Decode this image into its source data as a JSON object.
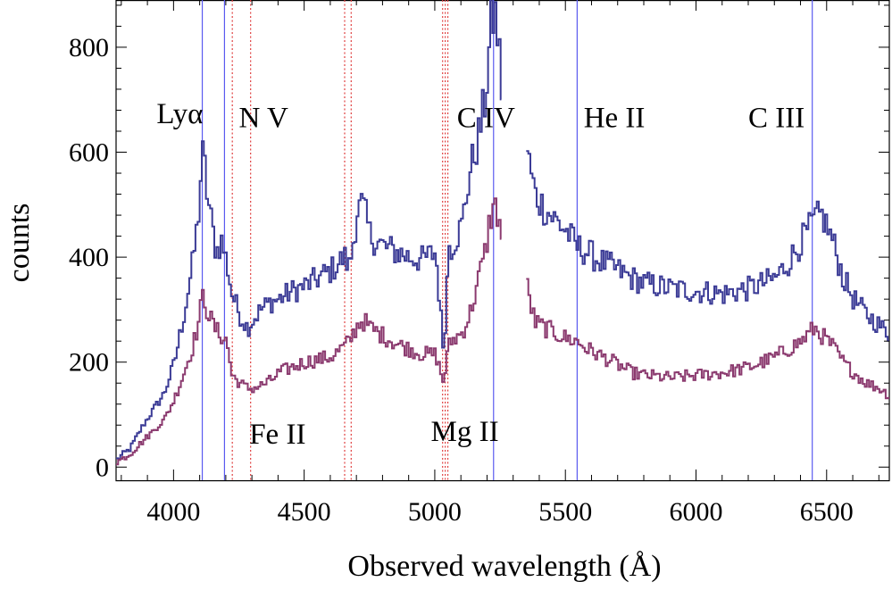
{
  "chart_data": {
    "type": "line",
    "title": "",
    "xlabel": "Observed   wavelength   (Å)",
    "ylabel": "counts",
    "xlim": [
      3780,
      6740
    ],
    "ylim": [
      -25,
      890
    ],
    "xticks": [
      4000,
      4500,
      5000,
      5500,
      6000,
      6500
    ],
    "yticks": [
      0,
      200,
      400,
      600,
      800
    ],
    "grid": false,
    "legend": "none",
    "line_labels": [
      {
        "text": "Lyα",
        "x": 3935,
        "y": 655
      },
      {
        "text": "N  V",
        "x": 4250,
        "y": 648
      },
      {
        "text": "C IV",
        "x": 5085,
        "y": 648
      },
      {
        "text": "He  II",
        "x": 5570,
        "y": 648
      },
      {
        "text": "C III",
        "x": 6200,
        "y": 648
      },
      {
        "text": "Fe II",
        "x": 4290,
        "y": 45
      },
      {
        "text": "Mg  II",
        "x": 4985,
        "y": 50
      }
    ],
    "emission_lines": [
      4110,
      4195,
      5225,
      5545,
      6445
    ],
    "absorption_lines": [
      4225,
      4295,
      4655,
      4680,
      5030,
      5040,
      5050
    ],
    "series": [
      {
        "color": "#3b3b96",
        "x": [
          3780,
          3830,
          3880,
          3920,
          3960,
          4000,
          4040,
          4070,
          4090,
          4100,
          4110,
          4125,
          4140,
          4160,
          4180,
          4200,
          4220,
          4250,
          4280,
          4300,
          4330,
          4370,
          4400,
          4450,
          4500,
          4550,
          4600,
          4650,
          4670,
          4700,
          4720,
          4750,
          4800,
          4850,
          4900,
          4950,
          5000,
          5030,
          5040,
          5050,
          5060,
          5100,
          5130,
          5160,
          5190,
          5210,
          5225,
          5240,
          5255
        ],
        "values": [
          15,
          35,
          80,
          110,
          140,
          200,
          300,
          390,
          470,
          550,
          600,
          520,
          470,
          410,
          430,
          390,
          330,
          290,
          265,
          280,
          300,
          315,
          320,
          335,
          345,
          360,
          375,
          400,
          380,
          490,
          500,
          440,
          420,
          410,
          400,
          395,
          410,
          220,
          310,
          430,
          420,
          460,
          560,
          620,
          700,
          830,
          870,
          810,
          700
        ]
      },
      {
        "color": "#3b3b96",
        "x": [
          5350,
          5380,
          5420,
          5460,
          5500,
          5540,
          5580,
          5620,
          5680,
          5750,
          5800,
          5900,
          6000,
          6100,
          6200,
          6300,
          6350,
          6400,
          6450,
          6480,
          6520,
          6560,
          6600,
          6650,
          6700,
          6740
        ],
        "values": [
          600,
          520,
          490,
          470,
          450,
          420,
          410,
          395,
          380,
          360,
          350,
          340,
          335,
          330,
          340,
          360,
          390,
          430,
          470,
          480,
          430,
          360,
          320,
          290,
          270,
          250
        ]
      },
      {
        "color": "#8b3a6f",
        "x": [
          3780,
          3830,
          3880,
          3920,
          3960,
          4000,
          4040,
          4070,
          4090,
          4100,
          4110,
          4125,
          4140,
          4160,
          4180,
          4200,
          4220,
          4250,
          4280,
          4300,
          4330,
          4370,
          4400,
          4450,
          4500,
          4550,
          4600,
          4650,
          4670,
          4700,
          4720,
          4750,
          4800,
          4850,
          4900,
          4950,
          5000,
          5030,
          5040,
          5050,
          5060,
          5100,
          5130,
          5160,
          5190,
          5210,
          5225,
          5240,
          5255
        ],
        "values": [
          10,
          25,
          50,
          70,
          90,
          130,
          185,
          230,
          270,
          300,
          330,
          300,
          280,
          260,
          250,
          240,
          175,
          160,
          150,
          150,
          155,
          165,
          180,
          190,
          200,
          205,
          210,
          230,
          240,
          270,
          280,
          265,
          250,
          235,
          225,
          215,
          215,
          160,
          200,
          230,
          240,
          255,
          290,
          350,
          410,
          480,
          495,
          480,
          430
        ]
      },
      {
        "color": "#8b3a6f",
        "x": [
          5350,
          5380,
          5420,
          5460,
          5500,
          5540,
          5580,
          5620,
          5680,
          5750,
          5800,
          5900,
          6000,
          6100,
          6200,
          6300,
          6350,
          6400,
          6450,
          6480,
          6520,
          6560,
          6600,
          6650,
          6700,
          6740
        ],
        "values": [
          340,
          275,
          265,
          255,
          245,
          240,
          225,
          215,
          200,
          180,
          175,
          170,
          175,
          180,
          190,
          210,
          225,
          240,
          265,
          250,
          230,
          200,
          180,
          160,
          150,
          135
        ]
      }
    ]
  }
}
